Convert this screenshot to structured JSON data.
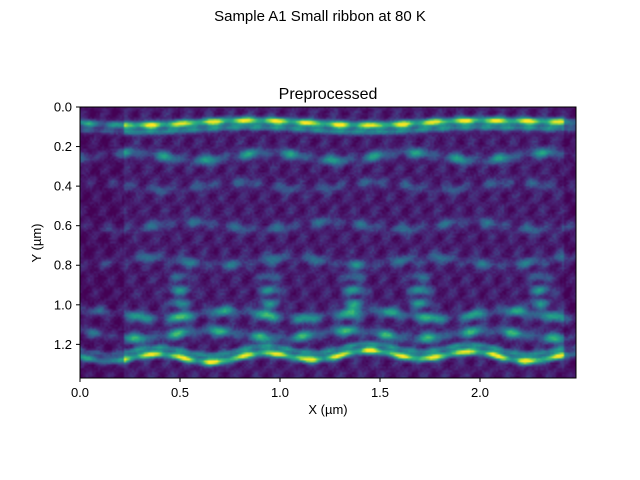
{
  "figure": {
    "suptitle": "Sample A1 Small ribbon at 80 K"
  },
  "colors": {
    "cmap": "viridis",
    "low": "#440154",
    "mid": "#21918c",
    "high": "#fde725"
  },
  "chart_data": {
    "type": "heatmap",
    "title": "Preprocessed",
    "xlabel": "X (µm)",
    "ylabel": "Y (µm)",
    "xlim": [
      0.0,
      2.48
    ],
    "ylim": [
      1.37,
      0.0
    ],
    "y_inverted": true,
    "x_ticks": [
      "0.0",
      "0.5",
      "1.0",
      "1.5",
      "2.0"
    ],
    "x_tick_values": [
      0.0,
      0.5,
      1.0,
      1.5,
      2.0
    ],
    "y_ticks": [
      "0.0",
      "0.2",
      "0.4",
      "0.6",
      "0.8",
      "1.0",
      "1.2"
    ],
    "y_tick_values": [
      0.0,
      0.2,
      0.4,
      0.6,
      0.8,
      1.0,
      1.2
    ],
    "grid": false,
    "colormap": "viridis",
    "features": [
      {
        "kind": "bright-band",
        "y": 0.08,
        "intensity": 1.0
      },
      {
        "kind": "band",
        "y": 0.25,
        "intensity": 0.45
      },
      {
        "kind": "band",
        "y": 0.4,
        "intensity": 0.2
      },
      {
        "kind": "band",
        "y": 0.6,
        "intensity": 0.25
      },
      {
        "kind": "band",
        "y": 0.78,
        "intensity": 0.28
      },
      {
        "kind": "band",
        "y": 1.05,
        "intensity": 0.5
      },
      {
        "kind": "band",
        "y": 1.15,
        "intensity": 0.55
      },
      {
        "kind": "bright-band",
        "y": 1.27,
        "intensity": 1.0
      },
      {
        "kind": "vertical-streak",
        "x": 0.5,
        "intensity": 0.45
      },
      {
        "kind": "vertical-streak",
        "x": 0.95,
        "intensity": 0.45
      },
      {
        "kind": "vertical-streak",
        "x": 1.37,
        "intensity": 0.5
      },
      {
        "kind": "vertical-streak",
        "x": 1.7,
        "intensity": 0.5
      },
      {
        "kind": "vertical-streak",
        "x": 2.3,
        "intensity": 0.45
      }
    ]
  }
}
